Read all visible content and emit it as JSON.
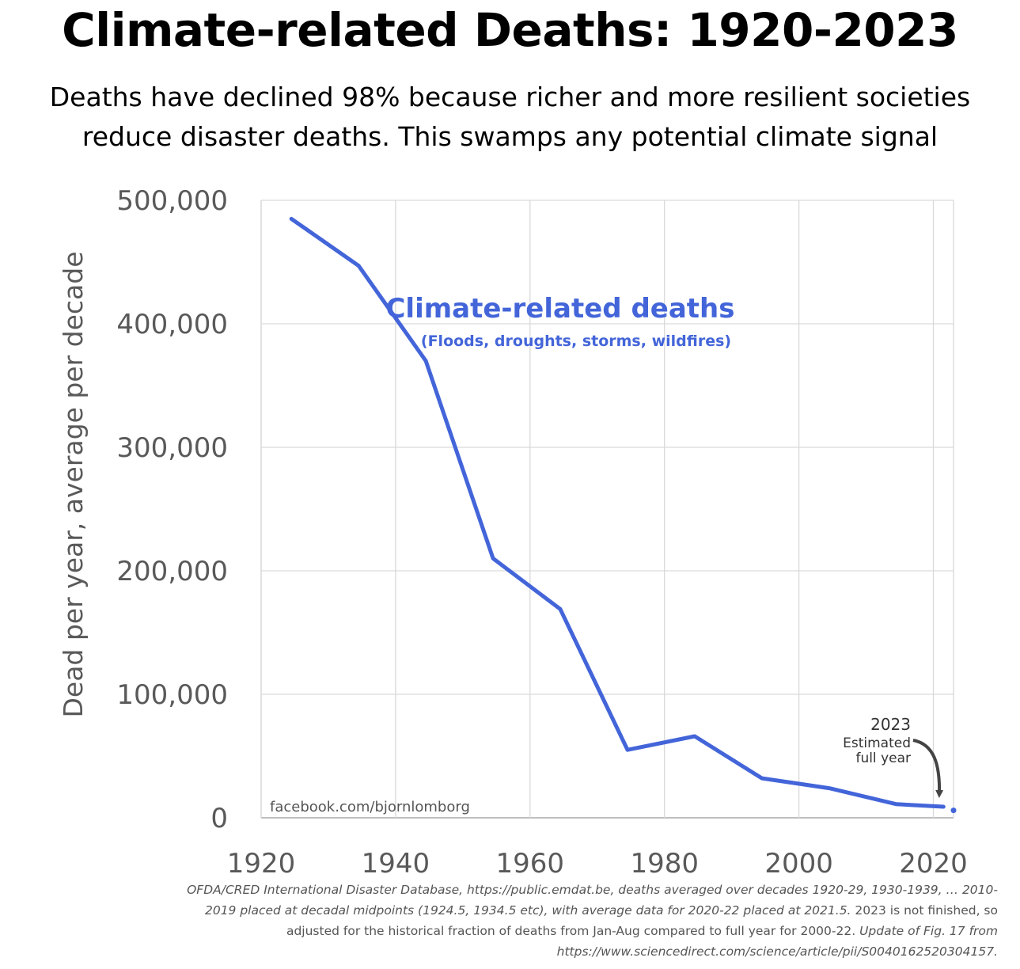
{
  "header": {
    "title": "Climate-related Deaths: 1920-2023",
    "subtitle_line1": "Deaths have declined 98% because richer and more resilient societies",
    "subtitle_line2": "reduce disaster deaths. This swamps any potential climate signal"
  },
  "chart_data": {
    "type": "line",
    "title": "Climate-related Deaths: 1920-2023",
    "ylabel": "Dead per year, average per decade",
    "xlabel": "",
    "xlim": [
      1920,
      2023
    ],
    "ylim": [
      0,
      500000
    ],
    "x_ticks": [
      "1920",
      "1940",
      "1960",
      "1980",
      "2000",
      "2020"
    ],
    "y_ticks": [
      "0",
      "100,000",
      "200,000",
      "300,000",
      "400,000",
      "500,000"
    ],
    "grid": true,
    "series": [
      {
        "name": "Climate-related deaths",
        "color": "#4365d9",
        "x": [
          1924.5,
          1934.5,
          1944.5,
          1954.5,
          1964.5,
          1974.5,
          1984.5,
          1994.5,
          2004.5,
          2014.5,
          2021.5
        ],
        "y": [
          485000,
          447000,
          370000,
          210000,
          169000,
          55000,
          66000,
          32000,
          24000,
          11000,
          9000
        ]
      },
      {
        "name": "2023 Estimated full year",
        "color": "#4365d9",
        "x": [
          2023
        ],
        "y": [
          6000
        ]
      }
    ],
    "annotations": {
      "series_label": "Climate-related deaths",
      "series_sublabel": "(Floods, droughts, storms, wildfires)",
      "estimate_line1": "2023",
      "estimate_line2": "Estimated",
      "estimate_line3": "full year",
      "watermark": "facebook.com/bjornlomborg"
    }
  },
  "source": {
    "line1": "OFDA/CRED International Disaster Database, https://public.emdat.be, deaths averaged over decades 1920-29, 1930-1939, … 2010-",
    "line2": "2019 placed at decadal midpoints (1924.5, 1934.5 etc), with average data for 2020-22 placed at 2021.5.",
    "line2b": " 2023 is not finished, so",
    "line3": "adjusted for the historical fraction of deaths from Jan-Aug compared to full year for 2000-22.",
    "line3b": " Update of Fig. 17 from",
    "line4": "https://www.sciencedirect.com/science/article/pii/S0040162520304157."
  }
}
